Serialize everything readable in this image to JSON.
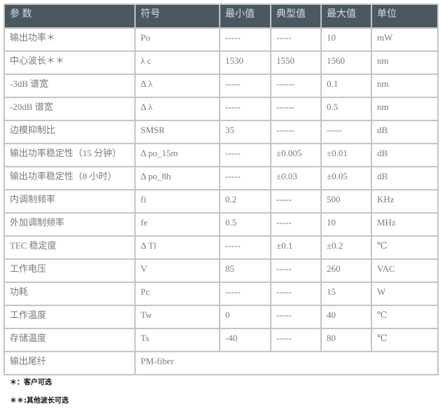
{
  "headers": [
    "参 数",
    "符号",
    "最小值",
    "典型值",
    "最大值",
    "单位"
  ],
  "rows": [
    [
      "输出功率＊",
      "Po",
      "-----",
      "-----",
      "10",
      "mW"
    ],
    [
      "中心波长＊＊",
      "λ c",
      "1530",
      "1550",
      "1560",
      "nm"
    ],
    [
      "-3dB 谱宽",
      "Δ λ",
      "-----",
      "------",
      "0.1",
      "nm"
    ],
    [
      "-20dB 谱宽",
      "Δ λ",
      "-----",
      "------",
      "0.5",
      "nm"
    ],
    [
      "边模抑制比",
      "SMSR",
      "35",
      "------",
      "-----",
      "dB"
    ],
    [
      "输出功率稳定性（15 分钟）",
      "Δ po_15m",
      "-----",
      "±0.005",
      "±0.01",
      "dB"
    ],
    [
      "输出功率稳定性（8 小时）",
      "Δ po_8h",
      "-----",
      "±0.03",
      "±0.05",
      "dB"
    ],
    [
      "内调制频率",
      "fi",
      "0.2",
      "-----",
      "500",
      "KHz"
    ],
    [
      "外加调制频率",
      "fe",
      "0.5",
      "-----",
      "10",
      "MHz"
    ],
    [
      "TEC 稳定度",
      "Δ Tl",
      "-----",
      "±0.1",
      "±0.2",
      "℃"
    ],
    [
      "工作电压",
      "V",
      "85",
      "-----",
      "260",
      "VAC"
    ],
    [
      "功耗",
      "Pc",
      "-----",
      "-----",
      "15",
      "W"
    ],
    [
      "工作温度",
      "Tw",
      "0",
      "-----",
      "40",
      "℃"
    ],
    [
      "存储温度",
      "Ts",
      "-40",
      "-----",
      "80",
      "℃"
    ]
  ],
  "last_row": {
    "label": "输出尾纤",
    "value": "PM-fiber"
  },
  "notes": [
    "＊：客户可选",
    "＊＊:其他波长可选"
  ]
}
